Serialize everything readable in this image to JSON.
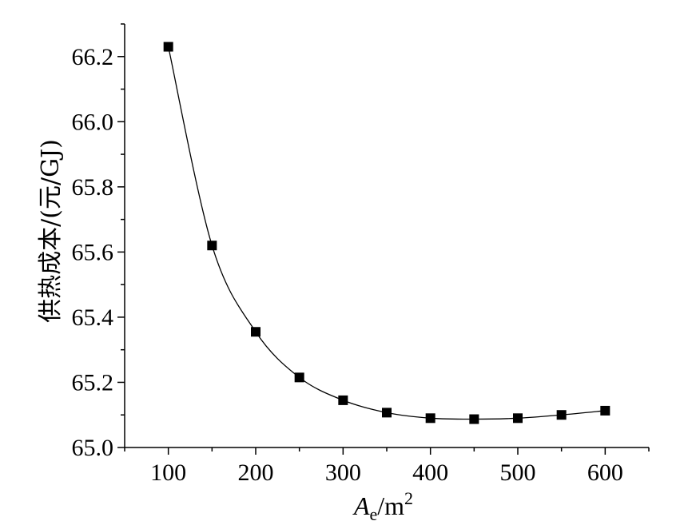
{
  "chart_data": {
    "type": "line",
    "title": "",
    "xlabel": {
      "main": "A",
      "sub": "e",
      "unit": "/m",
      "sup": "2"
    },
    "ylabel": "供热成本/(元/GJ)",
    "xlim": [
      50,
      650
    ],
    "ylim": [
      65.0,
      66.3
    ],
    "xticks": [
      100,
      200,
      300,
      400,
      500,
      600
    ],
    "yticks": [
      65.0,
      65.2,
      65.4,
      65.6,
      65.8,
      66.0,
      66.2
    ],
    "ytick_labels": [
      "65.0",
      "65.2",
      "65.4",
      "65.6",
      "65.8",
      "66.0",
      "66.2"
    ],
    "marker": "square",
    "line_color": "#000000",
    "marker_color": "#000000",
    "series": [
      {
        "x": [
          100,
          150,
          200,
          250,
          300,
          350,
          400,
          450,
          500,
          550,
          600
        ],
        "y": [
          66.23,
          65.62,
          65.355,
          65.215,
          65.145,
          65.107,
          65.09,
          65.087,
          65.09,
          65.1,
          65.113
        ]
      }
    ]
  }
}
